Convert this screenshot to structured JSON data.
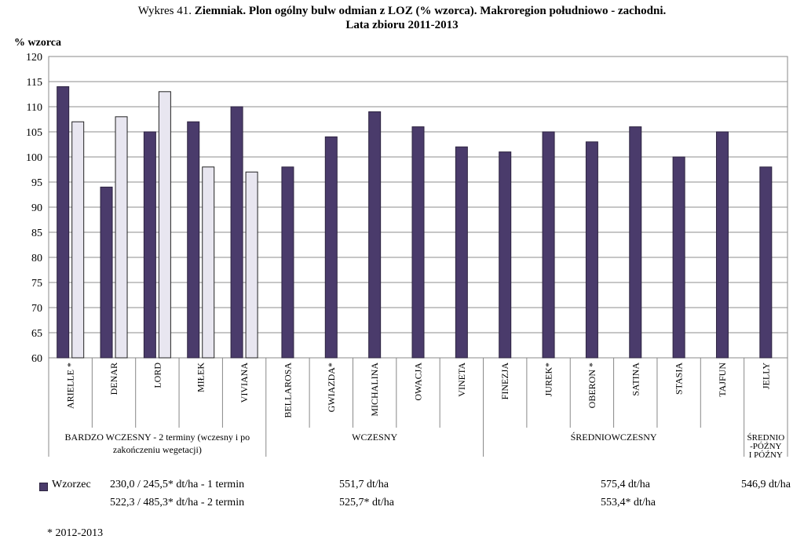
{
  "header": {
    "title_prefix": "Wykres 41. ",
    "title_bold": "Ziemniak. Plon ogólny bulw odmian z LOZ (% wzorca). Makroregion południowo - zachodni.",
    "subtitle": "Lata zbioru 2011-2013"
  },
  "colors": {
    "primary": "#4a3b6b",
    "secondary": "#e8e6f0",
    "bar_stroke": "#2d2440"
  },
  "chart_data": {
    "type": "bar",
    "ylabel": "% wzorca",
    "ylim": [
      60,
      120
    ],
    "yticks": [
      60,
      65,
      70,
      75,
      80,
      85,
      90,
      95,
      100,
      105,
      110,
      115,
      120
    ],
    "categories": [
      "ARIELLE *",
      "DENAR",
      "LORD",
      "MIŁEK",
      "VIVIANA",
      "BELLAROSA",
      "GWIAZDA*",
      "MICHALINA",
      "OWACJA",
      "VINETA",
      "FINEZJA",
      "JUREK*",
      "OBERON *",
      "SATINA",
      "STASIA",
      "TAJFUN",
      "JELLY"
    ],
    "series": [
      {
        "name": "Wzorzec",
        "values": [
          114,
          94,
          105,
          107,
          110,
          98,
          104,
          109,
          106,
          102,
          101,
          105,
          103,
          106,
          100,
          105,
          98
        ]
      },
      {
        "values": [
          107,
          108,
          113,
          98,
          97,
          null,
          null,
          null,
          null,
          null,
          null,
          null,
          null,
          null,
          null,
          null,
          null
        ]
      }
    ],
    "groups": [
      {
        "label": "BARDZO WCZESNY - 2 terminy  (wczesny i po zakończeniu wegetacji)",
        "start": 0,
        "end": 4
      },
      {
        "label": "WCZESNY",
        "start": 5,
        "end": 9
      },
      {
        "label": "ŚREDNIOWCZESNY",
        "start": 10,
        "end": 15
      },
      {
        "label": "ŚREDNIO -PÓŹNY I PÓŹNY",
        "start": 16,
        "end": 16
      }
    ],
    "legend": "bottom-left",
    "grid": true
  },
  "footer": {
    "legend_label": "Wzorzec",
    "row1": {
      "g1": "230,0 / 245,5*  dt/ha - 1 termin",
      "g2": "551,7 dt/ha",
      "g3": "575,4 dt/ha",
      "g4": "546,9 dt/ha"
    },
    "row2": {
      "g1": "522,3 / 485,3* dt/ha  - 2 termin",
      "g2": "525,7* dt/ha",
      "g3": "553,4* dt/ha"
    },
    "note": "*  2012-2013"
  }
}
